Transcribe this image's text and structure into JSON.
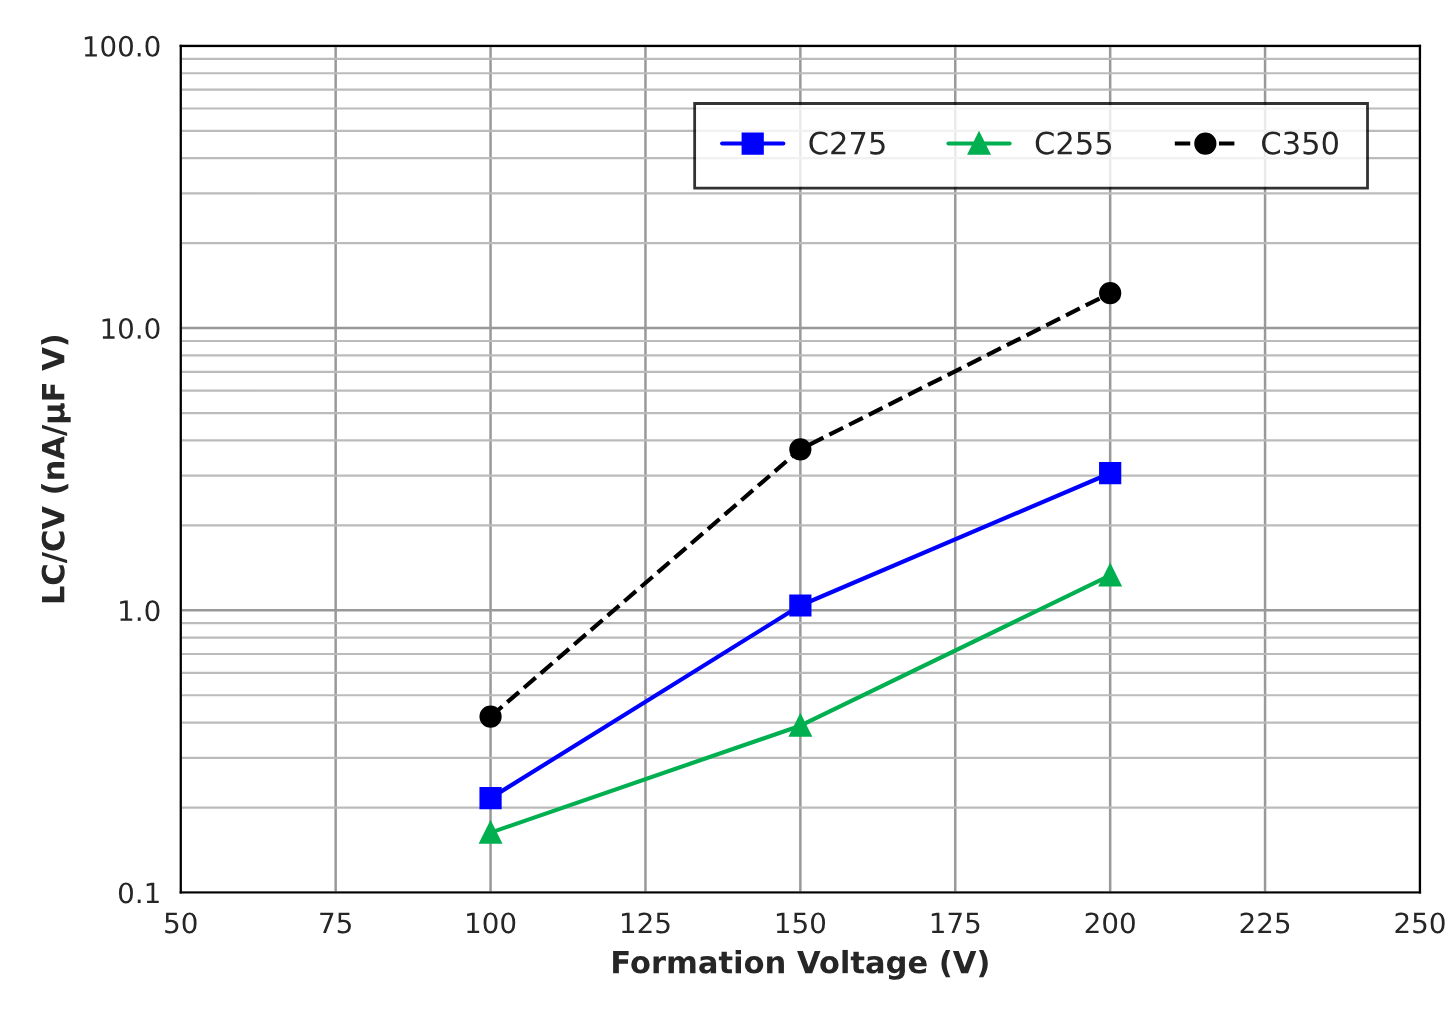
{
  "chart_data": {
    "type": "line",
    "xlabel": "Formation Voltage (V)",
    "ylabel": "LC/CV (nA/µF V)",
    "log": "y",
    "grid": true,
    "legend": "top right",
    "xlim": [
      50,
      250
    ],
    "xticks": [
      50,
      75,
      100,
      125,
      150,
      175,
      200,
      225,
      250
    ],
    "ylim": [
      0.1,
      100
    ],
    "yticks": [
      {
        "value": 0.1,
        "label": "0.1"
      },
      {
        "value": 1,
        "label": "1.0"
      },
      {
        "value": 10,
        "label": "10.0"
      },
      {
        "value": 100,
        "label": "100.0"
      }
    ],
    "series": [
      {
        "name": "C275",
        "color": "#0000ff",
        "marker": "square",
        "line_style": "solid",
        "x": [
          100,
          150,
          200
        ],
        "values": [
          0.216,
          1.04,
          3.06
        ]
      },
      {
        "name": "C255",
        "color": "#00b050",
        "marker": "triangle",
        "line_style": "solid",
        "x": [
          100,
          150,
          200
        ],
        "values": [
          0.163,
          0.39,
          1.33
        ]
      },
      {
        "name": "C350",
        "color": "#000000",
        "marker": "circle",
        "line_style": "dashed",
        "x": [
          100,
          150,
          200
        ],
        "values": [
          0.42,
          3.72,
          13.3
        ]
      }
    ]
  }
}
